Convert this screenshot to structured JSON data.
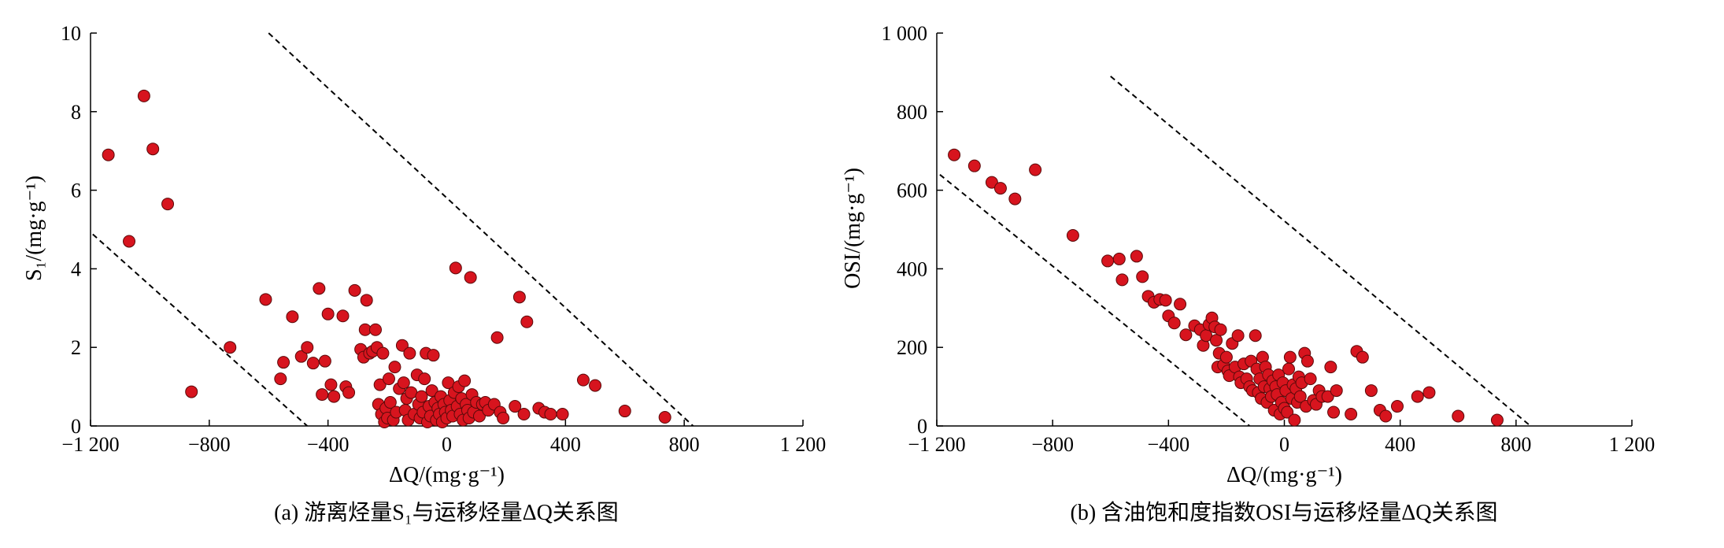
{
  "chart_data": [
    {
      "type": "scatter",
      "panel": "a",
      "caption": "(a) 游离烃量S₁与运移烃量ΔQ关系图",
      "xlabel": "ΔQ/(mg·g⁻¹)",
      "ylabel": "S₁/(mg·g⁻¹)",
      "xlim": [
        -1200,
        1200
      ],
      "ylim": [
        0,
        10
      ],
      "xticks": [
        -1200,
        -800,
        -400,
        0,
        400,
        800,
        1200
      ],
      "xtick_labels": [
        "−1 200",
        "−800",
        "−400",
        "0",
        "400",
        "800",
        "1 200"
      ],
      "yticks": [
        0,
        2,
        4,
        6,
        8,
        10
      ],
      "ytick_labels": [
        "0",
        "2",
        "4",
        "6",
        "8",
        "10"
      ],
      "grid": false,
      "marker_color": "#d7141e",
      "series": [
        {
          "points": [
            [
              -1140,
              6.9
            ],
            [
              -1020,
              8.4
            ],
            [
              -990,
              7.05
            ],
            [
              -940,
              5.65
            ],
            [
              -1070,
              4.7
            ],
            [
              -860,
              0.87
            ],
            [
              -730,
              2.0
            ],
            [
              -610,
              3.22
            ],
            [
              -560,
              1.2
            ],
            [
              -550,
              1.62
            ],
            [
              -520,
              2.78
            ],
            [
              -490,
              1.77
            ],
            [
              -470,
              2.0
            ],
            [
              -450,
              1.6
            ],
            [
              -430,
              3.5
            ],
            [
              -420,
              0.8
            ],
            [
              -410,
              1.65
            ],
            [
              -400,
              2.85
            ],
            [
              -390,
              1.05
            ],
            [
              -380,
              0.75
            ],
            [
              -350,
              2.8
            ],
            [
              -340,
              1.0
            ],
            [
              -330,
              0.85
            ],
            [
              -310,
              3.45
            ],
            [
              -290,
              1.95
            ],
            [
              -280,
              1.75
            ],
            [
              -275,
              2.45
            ],
            [
              -270,
              3.2
            ],
            [
              -260,
              1.85
            ],
            [
              -250,
              1.9
            ],
            [
              -240,
              2.45
            ],
            [
              -235,
              2.0
            ],
            [
              -230,
              0.55
            ],
            [
              -225,
              1.05
            ],
            [
              -220,
              0.3
            ],
            [
              -215,
              1.85
            ],
            [
              -210,
              0.1
            ],
            [
              -205,
              0.45
            ],
            [
              -200,
              0.2
            ],
            [
              -195,
              1.2
            ],
            [
              -190,
              0.6
            ],
            [
              -180,
              0.15
            ],
            [
              -175,
              1.5
            ],
            [
              -170,
              0.35
            ],
            [
              -160,
              0.95
            ],
            [
              -150,
              2.05
            ],
            [
              -145,
              1.1
            ],
            [
              -140,
              0.4
            ],
            [
              -135,
              0.7
            ],
            [
              -130,
              0.15
            ],
            [
              -125,
              1.85
            ],
            [
              -120,
              0.85
            ],
            [
              -110,
              0.3
            ],
            [
              -100,
              1.3
            ],
            [
              -95,
              0.55
            ],
            [
              -90,
              0.2
            ],
            [
              -85,
              0.75
            ],
            [
              -80,
              0.35
            ],
            [
              -75,
              1.2
            ],
            [
              -70,
              1.85
            ],
            [
              -65,
              0.1
            ],
            [
              -60,
              0.5
            ],
            [
              -55,
              0.25
            ],
            [
              -50,
              0.9
            ],
            [
              -45,
              1.8
            ],
            [
              -40,
              0.6
            ],
            [
              -35,
              0.15
            ],
            [
              -30,
              0.45
            ],
            [
              -25,
              0.3
            ],
            [
              -20,
              0.75
            ],
            [
              -15,
              0.1
            ],
            [
              -10,
              0.55
            ],
            [
              -5,
              0.35
            ],
            [
              0,
              0.2
            ],
            [
              5,
              1.1
            ],
            [
              10,
              0.65
            ],
            [
              15,
              0.4
            ],
            [
              20,
              0.25
            ],
            [
              25,
              0.85
            ],
            [
              30,
              4.02
            ],
            [
              35,
              0.5
            ],
            [
              40,
              1.0
            ],
            [
              45,
              0.3
            ],
            [
              50,
              0.7
            ],
            [
              55,
              0.15
            ],
            [
              60,
              1.15
            ],
            [
              65,
              0.55
            ],
            [
              70,
              0.4
            ],
            [
              75,
              0.2
            ],
            [
              80,
              3.78
            ],
            [
              85,
              0.8
            ],
            [
              90,
              0.35
            ],
            [
              100,
              0.6
            ],
            [
              110,
              0.25
            ],
            [
              120,
              0.55
            ],
            [
              130,
              0.6
            ],
            [
              140,
              0.4
            ],
            [
              160,
              0.55
            ],
            [
              170,
              2.25
            ],
            [
              180,
              0.35
            ],
            [
              190,
              0.2
            ],
            [
              230,
              0.5
            ],
            [
              245,
              3.28
            ],
            [
              260,
              0.3
            ],
            [
              270,
              2.65
            ],
            [
              310,
              0.45
            ],
            [
              330,
              0.35
            ],
            [
              350,
              0.3
            ],
            [
              390,
              0.3
            ],
            [
              460,
              1.17
            ],
            [
              500,
              1.03
            ],
            [
              600,
              0.38
            ],
            [
              735,
              0.22
            ]
          ]
        }
      ],
      "boundary_lines": [
        {
          "x": [
            -1240,
            -470
          ],
          "y": [
            5.2,
            0
          ]
        },
        {
          "x": [
            -600,
            830
          ],
          "y": [
            10,
            0
          ]
        }
      ]
    },
    {
      "type": "scatter",
      "panel": "b",
      "caption": "(b) 含油饱和度指数OSI与运移烃量ΔQ关系图",
      "xlabel": "ΔQ/(mg·g⁻¹)",
      "ylabel": "OSI/(mg·g⁻¹)",
      "xlim": [
        -1200,
        1200
      ],
      "ylim": [
        0,
        1000
      ],
      "xticks": [
        -1200,
        -800,
        -400,
        0,
        400,
        800,
        1200
      ],
      "xtick_labels": [
        "−1 200",
        "−800",
        "−400",
        "0",
        "400",
        "800",
        "1 200"
      ],
      "yticks": [
        0,
        200,
        400,
        600,
        800,
        1000
      ],
      "ytick_labels": [
        "0",
        "200",
        "400",
        "600",
        "800",
        "1 000"
      ],
      "grid": false,
      "marker_color": "#d7141e",
      "series": [
        {
          "points": [
            [
              -1140,
              690
            ],
            [
              -1070,
              662
            ],
            [
              -1010,
              620
            ],
            [
              -980,
              605
            ],
            [
              -930,
              578
            ],
            [
              -860,
              652
            ],
            [
              -730,
              485
            ],
            [
              -610,
              420
            ],
            [
              -570,
              425
            ],
            [
              -560,
              372
            ],
            [
              -510,
              432
            ],
            [
              -490,
              380
            ],
            [
              -470,
              330
            ],
            [
              -450,
              315
            ],
            [
              -430,
              322
            ],
            [
              -410,
              320
            ],
            [
              -400,
              280
            ],
            [
              -380,
              262
            ],
            [
              -360,
              310
            ],
            [
              -340,
              232
            ],
            [
              -310,
              255
            ],
            [
              -290,
              245
            ],
            [
              -280,
              205
            ],
            [
              -270,
              230
            ],
            [
              -260,
              258
            ],
            [
              -250,
              275
            ],
            [
              -240,
              252
            ],
            [
              -235,
              218
            ],
            [
              -230,
              150
            ],
            [
              -225,
              185
            ],
            [
              -220,
              245
            ],
            [
              -210,
              155
            ],
            [
              -200,
              175
            ],
            [
              -195,
              140
            ],
            [
              -190,
              128
            ],
            [
              -180,
              210
            ],
            [
              -170,
              150
            ],
            [
              -160,
              230
            ],
            [
              -155,
              125
            ],
            [
              -150,
              110
            ],
            [
              -140,
              158
            ],
            [
              -130,
              120
            ],
            [
              -120,
              100
            ],
            [
              -115,
              165
            ],
            [
              -110,
              90
            ],
            [
              -100,
              230
            ],
            [
              -95,
              145
            ],
            [
              -90,
              85
            ],
            [
              -85,
              120
            ],
            [
              -80,
              70
            ],
            [
              -75,
              175
            ],
            [
              -70,
              100
            ],
            [
              -65,
              150
            ],
            [
              -60,
              60
            ],
            [
              -55,
              130
            ],
            [
              -50,
              95
            ],
            [
              -45,
              75
            ],
            [
              -40,
              115
            ],
            [
              -35,
              40
            ],
            [
              -30,
              100
            ],
            [
              -25,
              80
            ],
            [
              -20,
              130
            ],
            [
              -15,
              30
            ],
            [
              -10,
              60
            ],
            [
              -5,
              110
            ],
            [
              0,
              45
            ],
            [
              5,
              90
            ],
            [
              10,
              35
            ],
            [
              15,
              145
            ],
            [
              20,
              175
            ],
            [
              25,
              70
            ],
            [
              30,
              105
            ],
            [
              35,
              15
            ],
            [
              40,
              95
            ],
            [
              45,
              60
            ],
            [
              50,
              125
            ],
            [
              55,
              75
            ],
            [
              60,
              110
            ],
            [
              70,
              185
            ],
            [
              75,
              50
            ],
            [
              80,
              165
            ],
            [
              90,
              120
            ],
            [
              100,
              65
            ],
            [
              110,
              55
            ],
            [
              120,
              90
            ],
            [
              130,
              75
            ],
            [
              150,
              75
            ],
            [
              160,
              150
            ],
            [
              170,
              35
            ],
            [
              180,
              90
            ],
            [
              230,
              30
            ],
            [
              250,
              190
            ],
            [
              270,
              175
            ],
            [
              300,
              90
            ],
            [
              330,
              40
            ],
            [
              350,
              25
            ],
            [
              390,
              50
            ],
            [
              460,
              75
            ],
            [
              500,
              85
            ],
            [
              600,
              25
            ],
            [
              735,
              15
            ]
          ]
        }
      ],
      "boundary_lines": [
        {
          "x": [
            -1240,
            -120
          ],
          "y": [
            670,
            0
          ]
        },
        {
          "x": [
            -600,
            850
          ],
          "y": [
            890,
            0
          ]
        }
      ]
    }
  ]
}
